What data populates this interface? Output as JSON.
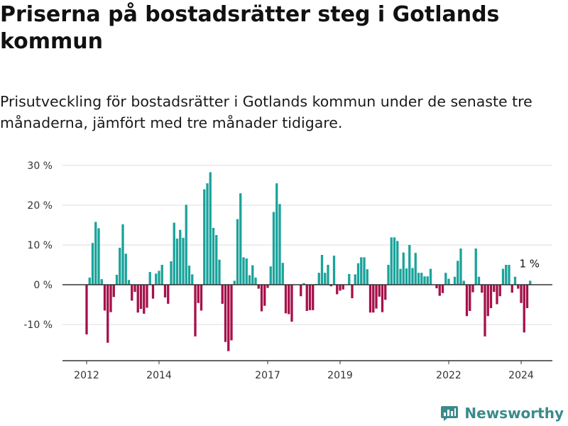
{
  "title": "Priserna på bostadsrätter steg i Gotlands kommun",
  "subtitle": "Prisutveckling för bostadsrätter i Gotlands kommun under de senaste tre månaderna, jämfört med tre månader tidigare.",
  "brand": {
    "name": "Newsworthy",
    "icon": "bar-chart-logo-icon"
  },
  "colors": {
    "positive": "#1aa39b",
    "negative": "#a5114a",
    "grid": "#dddddd",
    "zero_line": "#333333",
    "brand": "#3b8a8c"
  },
  "chart_data": {
    "type": "bar",
    "title": "Priserna på bostadsrätter steg i Gotlands kommun",
    "subtitle": "Prisutveckling för bostadsrätter i Gotlands kommun under de senaste tre månaderna, jämfört med tre månader tidigare.",
    "xlabel": "",
    "ylabel": "",
    "x_unit": "monthly",
    "x_start": "2012-01",
    "x_ticks": [
      {
        "label": "2012",
        "at": "2012-01"
      },
      {
        "label": "2014",
        "at": "2014-01"
      },
      {
        "label": "2017",
        "at": "2017-01"
      },
      {
        "label": "2019",
        "at": "2019-01"
      },
      {
        "label": "2022",
        "at": "2022-01"
      },
      {
        "label": "2024",
        "at": "2024-01"
      }
    ],
    "y_ticks": [
      {
        "value": 30,
        "label": "30 %"
      },
      {
        "value": 20,
        "label": "20 %"
      },
      {
        "value": 10,
        "label": "10 %"
      },
      {
        "value": 0,
        "label": "0 %"
      },
      {
        "value": -10,
        "label": "-10 %"
      }
    ],
    "ylim": [
      -19,
      30
    ],
    "grid": true,
    "annotation": {
      "text": "1 %",
      "at": "latest"
    },
    "values": [
      -12.5,
      1.8,
      10.5,
      15.8,
      14.2,
      1.4,
      -6.5,
      -14.6,
      -6.9,
      -3.1,
      2.5,
      9.3,
      15.2,
      7.8,
      1.2,
      -4.0,
      -1.8,
      -7.0,
      -6.1,
      -7.3,
      -5.8,
      3.2,
      -3.5,
      2.8,
      3.5,
      5.0,
      -3.2,
      -4.8,
      5.9,
      15.6,
      11.6,
      13.8,
      11.8,
      20.1,
      4.8,
      2.6,
      -13.0,
      -4.6,
      -6.5,
      24.0,
      25.5,
      28.3,
      14.3,
      12.5,
      6.3,
      -4.8,
      -14.4,
      -16.7,
      -14.0,
      1.0,
      16.5,
      23.0,
      6.9,
      6.6,
      2.4,
      4.9,
      1.8,
      -1.0,
      -6.7,
      -5.3,
      -0.8,
      4.6,
      18.3,
      25.5,
      20.3,
      5.5,
      -7.2,
      -7.4,
      -9.3,
      0.0,
      0.0,
      -2.9,
      0.4,
      -6.6,
      -6.4,
      -6.4,
      0.2,
      3.0,
      7.5,
      3.0,
      5.0,
      -0.4,
      7.3,
      -2.4,
      -1.5,
      -1.2,
      0.0,
      2.7,
      -3.4,
      2.6,
      5.4,
      6.9,
      6.9,
      3.9,
      -7.0,
      -7.0,
      -6.0,
      -3.0,
      -6.9,
      -3.8,
      5.0,
      11.9,
      11.9,
      11.0,
      4.0,
      8.1,
      4.1,
      10.0,
      4.2,
      8.0,
      3.0,
      3.0,
      2.1,
      2.1,
      4.0,
      0.0,
      -0.9,
      -2.8,
      -2.1,
      3.0,
      1.5,
      0.2,
      2.0,
      6.0,
      9.1,
      1.0,
      -7.9,
      -6.6,
      -1.9,
      9.1,
      2.0,
      -2.0,
      -13.0,
      -7.9,
      -5.9,
      -1.8,
      -4.9,
      -2.9,
      4.0,
      5.0,
      5.0,
      -2.0,
      2.0,
      -1.0,
      -4.6,
      -12.0,
      -5.9,
      1.0
    ]
  }
}
